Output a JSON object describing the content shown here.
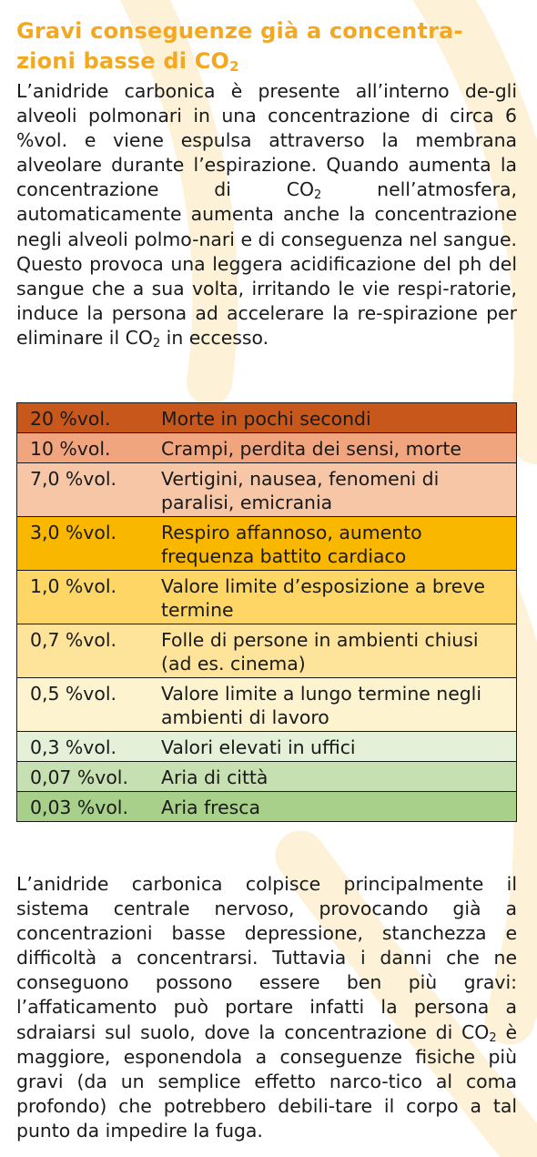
{
  "heading": {
    "line1": "Gravi conseguenze già a concentra-",
    "line2": "zioni basse di CO",
    "sub": "2"
  },
  "intro": {
    "part1": "L’anidride carbonica è presente all’interno de-gli alveoli polmonari in una concentrazione di circa 6 %vol. e viene espulsa attraverso la membrana alveolare durante l’espirazione. Quando aumenta la concentrazione di CO",
    "sub1": "2",
    "part2": " nell’atmosfera, automaticamente aumenta anche la concentrazione negli alveoli polmo-nari e di conseguenza nel sangue. Questo provoca una leggera acidificazione del ph del sangue che a sua volta, irritando le vie respi-ratorie, induce la persona ad accelerare la re-spirazione per eliminare il CO",
    "sub2": "2",
    "part3": " in eccesso."
  },
  "table": {
    "rows": [
      {
        "concentration": "20 %vol.",
        "effect": "Morte in pochi secondi",
        "color": "#c8571b"
      },
      {
        "concentration": "10 %vol.",
        "effect": "Crampi, perdita dei sensi, morte",
        "color": "#f1a57f"
      },
      {
        "concentration": "7,0 %vol.",
        "effect": "Vertigini, nausea, fenomeni di paralisi, emicrania",
        "color": "#f6c6a7"
      },
      {
        "concentration": "3,0 %vol.",
        "effect": "Respiro affannoso, aumento frequenza battito cardiaco",
        "color": "#f9b700"
      },
      {
        "concentration": "1,0 %vol.",
        "effect": "Valore limite d’esposizione a breve termine",
        "color": "#fdd665"
      },
      {
        "concentration": "0,7 %vol.",
        "effect": "Folle di persone in ambienti chiusi (ad es. cinema)",
        "color": "#fee39b"
      },
      {
        "concentration": "0,5 %vol.",
        "effect": "Valore limite a lungo termine negli ambienti di lavoro",
        "color": "#fdf3cf"
      },
      {
        "concentration": "0,3 %vol.",
        "effect": "Valori elevati in uffici",
        "color": "#e5f0d8"
      },
      {
        "concentration": "0,07 %vol.",
        "effect": "Aria di città",
        "color": "#c6e0b1"
      },
      {
        "concentration": "0,03 %vol.",
        "effect": "Aria fresca",
        "color": "#a8d08a"
      }
    ]
  },
  "outro": {
    "part1": "L’anidride carbonica colpisce principalmente il sistema centrale nervoso, provocando già a concentrazioni basse depressione, stanchezza e difficoltà a concentrarsi. Tuttavia i danni che ne conseguono possono essere ben più gravi: l’affaticamento può portare infatti la persona a sdraiarsi sul suolo, dove la concentrazione di CO",
    "sub1": "2",
    "part2": " è maggiore, esponendola a conseguenze fisiche più gravi (da un semplice effetto narco-tico al coma profondo) che potrebbero debili-tare il corpo a tal punto da impedire la fuga."
  }
}
